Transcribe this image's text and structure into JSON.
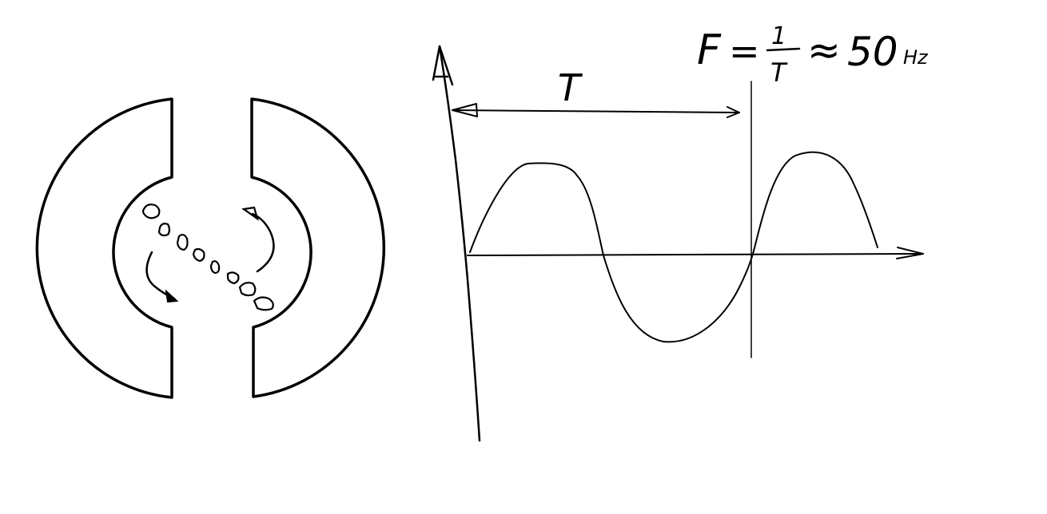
{
  "diagram": {
    "period_label": "T",
    "formula": {
      "lhs": "F",
      "equals": "=",
      "numerator": "1",
      "denominator": "T",
      "approx": "≈",
      "value": "50",
      "unit": "Hz"
    }
  },
  "colors": {
    "ink": "#000000",
    "background": "#ffffff"
  }
}
